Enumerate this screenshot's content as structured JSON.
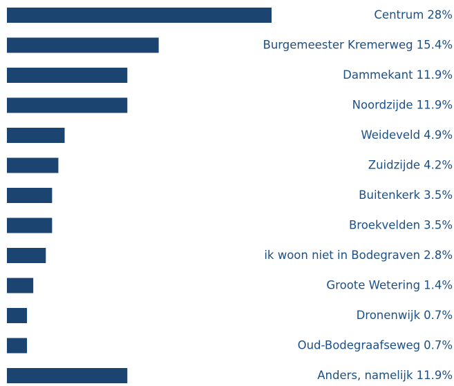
{
  "chart_data": {
    "type": "bar",
    "orientation": "horizontal",
    "color": "#1b4470",
    "categories": [
      "Centrum",
      "Burgemeester Kremerweg",
      "Dammekant",
      "Noordzijde",
      "Weideveld",
      "Zuidzijde",
      "Buitenkerk",
      "Broekvelden",
      "ik woon niet in Bodegraven",
      "Groote Wetering",
      "Dronenwijk",
      "Oud-Bodegraafseweg",
      "Anders, namelijk"
    ],
    "values": [
      28,
      15.4,
      11.9,
      11.9,
      4.9,
      4.2,
      3.5,
      3.5,
      2.8,
      1.4,
      0.7,
      0.7,
      11.9
    ],
    "value_labels": [
      "28%",
      "15.4%",
      "11.9%",
      "11.9%",
      "4.9%",
      "4.2%",
      "3.5%",
      "3.5%",
      "2.8%",
      "1.4%",
      "0.7%",
      "0.7%",
      "11.9%"
    ]
  }
}
